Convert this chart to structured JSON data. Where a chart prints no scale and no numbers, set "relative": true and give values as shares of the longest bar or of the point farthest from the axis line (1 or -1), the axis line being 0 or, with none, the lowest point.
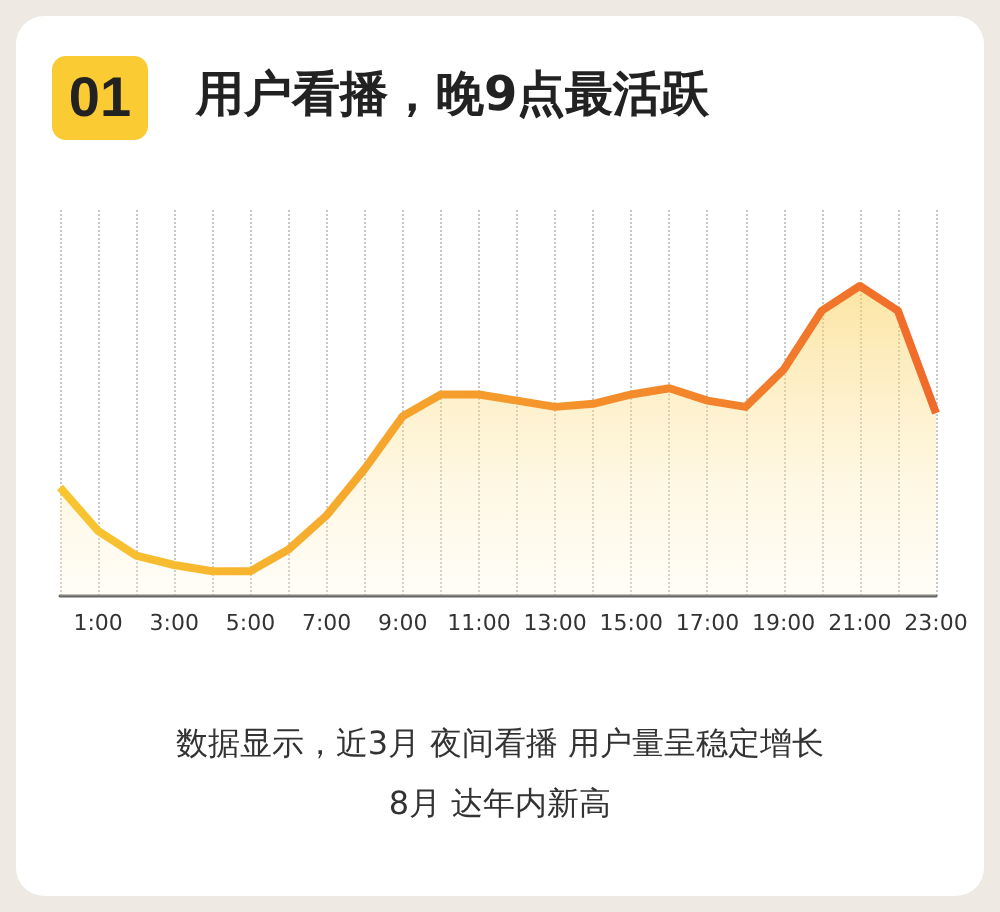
{
  "chart_data": {
    "type": "area",
    "title": "用户看播，晚9点最活跃",
    "annotations": [
      "01",
      "数据显示，近3月 夜间看播 用户量呈稳定增长",
      "8月 达年内新高"
    ],
    "categories": [
      null,
      "1:00",
      null,
      "3:00",
      null,
      "5:00",
      null,
      "7:00",
      null,
      "9:00",
      null,
      "11:00",
      null,
      "13:00",
      null,
      "15:00",
      null,
      "17:00",
      null,
      "19:00",
      null,
      "21:00",
      null,
      "23:00"
    ],
    "series": [
      {
        "color": "#f06a2a",
        "values": [
          0.35,
          0.21,
          0.13,
          0.1,
          0.08,
          0.08,
          0.15,
          0.26,
          0.41,
          0.58,
          0.65,
          0.65,
          0.63,
          0.61,
          0.62,
          0.65,
          0.67,
          0.63,
          0.61,
          0.73,
          0.92,
          1,
          0.92,
          0.59
        ]
      }
    ],
    "relative": true,
    "grid": "x",
    "marker": "none",
    "line_style": "solid"
  }
}
